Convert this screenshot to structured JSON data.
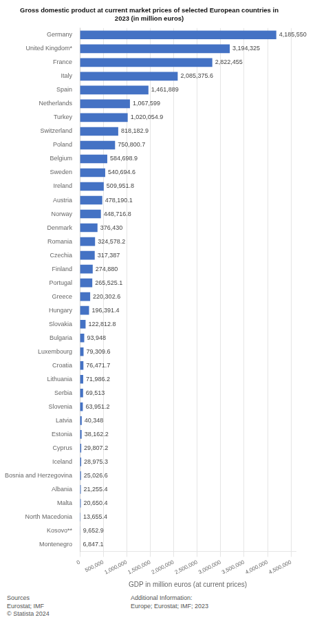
{
  "chart_data": {
    "type": "bar",
    "orientation": "horizontal",
    "title": "Gross domestic product at current market prices of selected European countries in\n2023 (in million euros)",
    "xlabel": "GDP in million euros (at current prices)",
    "categories": [
      "Germany",
      "United Kingdom*",
      "France",
      "Italy",
      "Spain",
      "Netherlands",
      "Turkey",
      "Switzerland",
      "Poland",
      "Belgium",
      "Sweden",
      "Ireland",
      "Austria",
      "Norway",
      "Denmark",
      "Romania",
      "Czechia",
      "Finland",
      "Portugal",
      "Greece",
      "Hungary",
      "Slovakia",
      "Bulgaria",
      "Luxembourg",
      "Croatia",
      "Lithuania",
      "Serbia",
      "Slovenia",
      "Latvia",
      "Estonia",
      "Cyprus",
      "Iceland",
      "Bosnia and Herzegovina",
      "Albania",
      "Malta",
      "North Macedonia",
      "Kosovo**",
      "Montenegro"
    ],
    "values": [
      4185550,
      3194325,
      2822455,
      2085375.6,
      1461889,
      1067599,
      1020054.9,
      818182.9,
      750800.7,
      584698.9,
      540694.6,
      509951.8,
      478190.1,
      448716.8,
      376430,
      324578.2,
      317387,
      274880,
      265525.1,
      220302.6,
      196391.4,
      122812.8,
      93948,
      79309.6,
      76471.7,
      71986.2,
      69513,
      63951.2,
      40348,
      38162.2,
      29807.2,
      28975.3,
      25026.6,
      21255.4,
      20650.4,
      13655.4,
      9652.9,
      6847.1
    ],
    "value_labels": [
      "4,185,550",
      "3,194,325",
      "2,822,455",
      "2,085,375.6",
      "1,461,889",
      "1,067,599",
      "1,020,054.9",
      "818,182.9",
      "750,800.7",
      "584,698.9",
      "540,694.6",
      "509,951.8",
      "478,190.1",
      "448,716.8",
      "376,430",
      "324,578.2",
      "317,387",
      "274,880",
      "265,525.1",
      "220,302.6",
      "196,391.4",
      "122,812.8",
      "93,948",
      "79,309.6",
      "76,471.7",
      "71,986.2",
      "69,513",
      "63,951.2",
      "40,348",
      "38,162.2",
      "29,807.2",
      "28,975.3",
      "25,026.6",
      "21,255.4",
      "20,650.4",
      "13,655.4",
      "9,652.9",
      "6,847.1"
    ],
    "color": "#4472c4",
    "data_labels": true,
    "grid": true,
    "xlim": [
      0,
      4600000
    ],
    "xticks": [
      0,
      {
        "value": 500000,
        "label": "500,000"
      },
      {
        "value": 1000000,
        "label": "1,000,000"
      },
      {
        "value": 1500000,
        "label": "1,500,000"
      },
      {
        "value": 2000000,
        "label": "2,000,000"
      },
      {
        "value": 2500000,
        "label": "2,500,000"
      },
      {
        "value": 3000000,
        "label": "3,000,000"
      },
      {
        "value": 3500000,
        "label": "3,500,000"
      },
      {
        "value": 4000000,
        "label": "4,000,000"
      },
      {
        "value": 4500000,
        "label": "4,500,000"
      }
    ],
    "annotations": [
      "Sources\nEurostat; IMF\n© Statista 2024",
      "Additional Information:\nEurope; Eurostat; IMF; 2023"
    ]
  }
}
